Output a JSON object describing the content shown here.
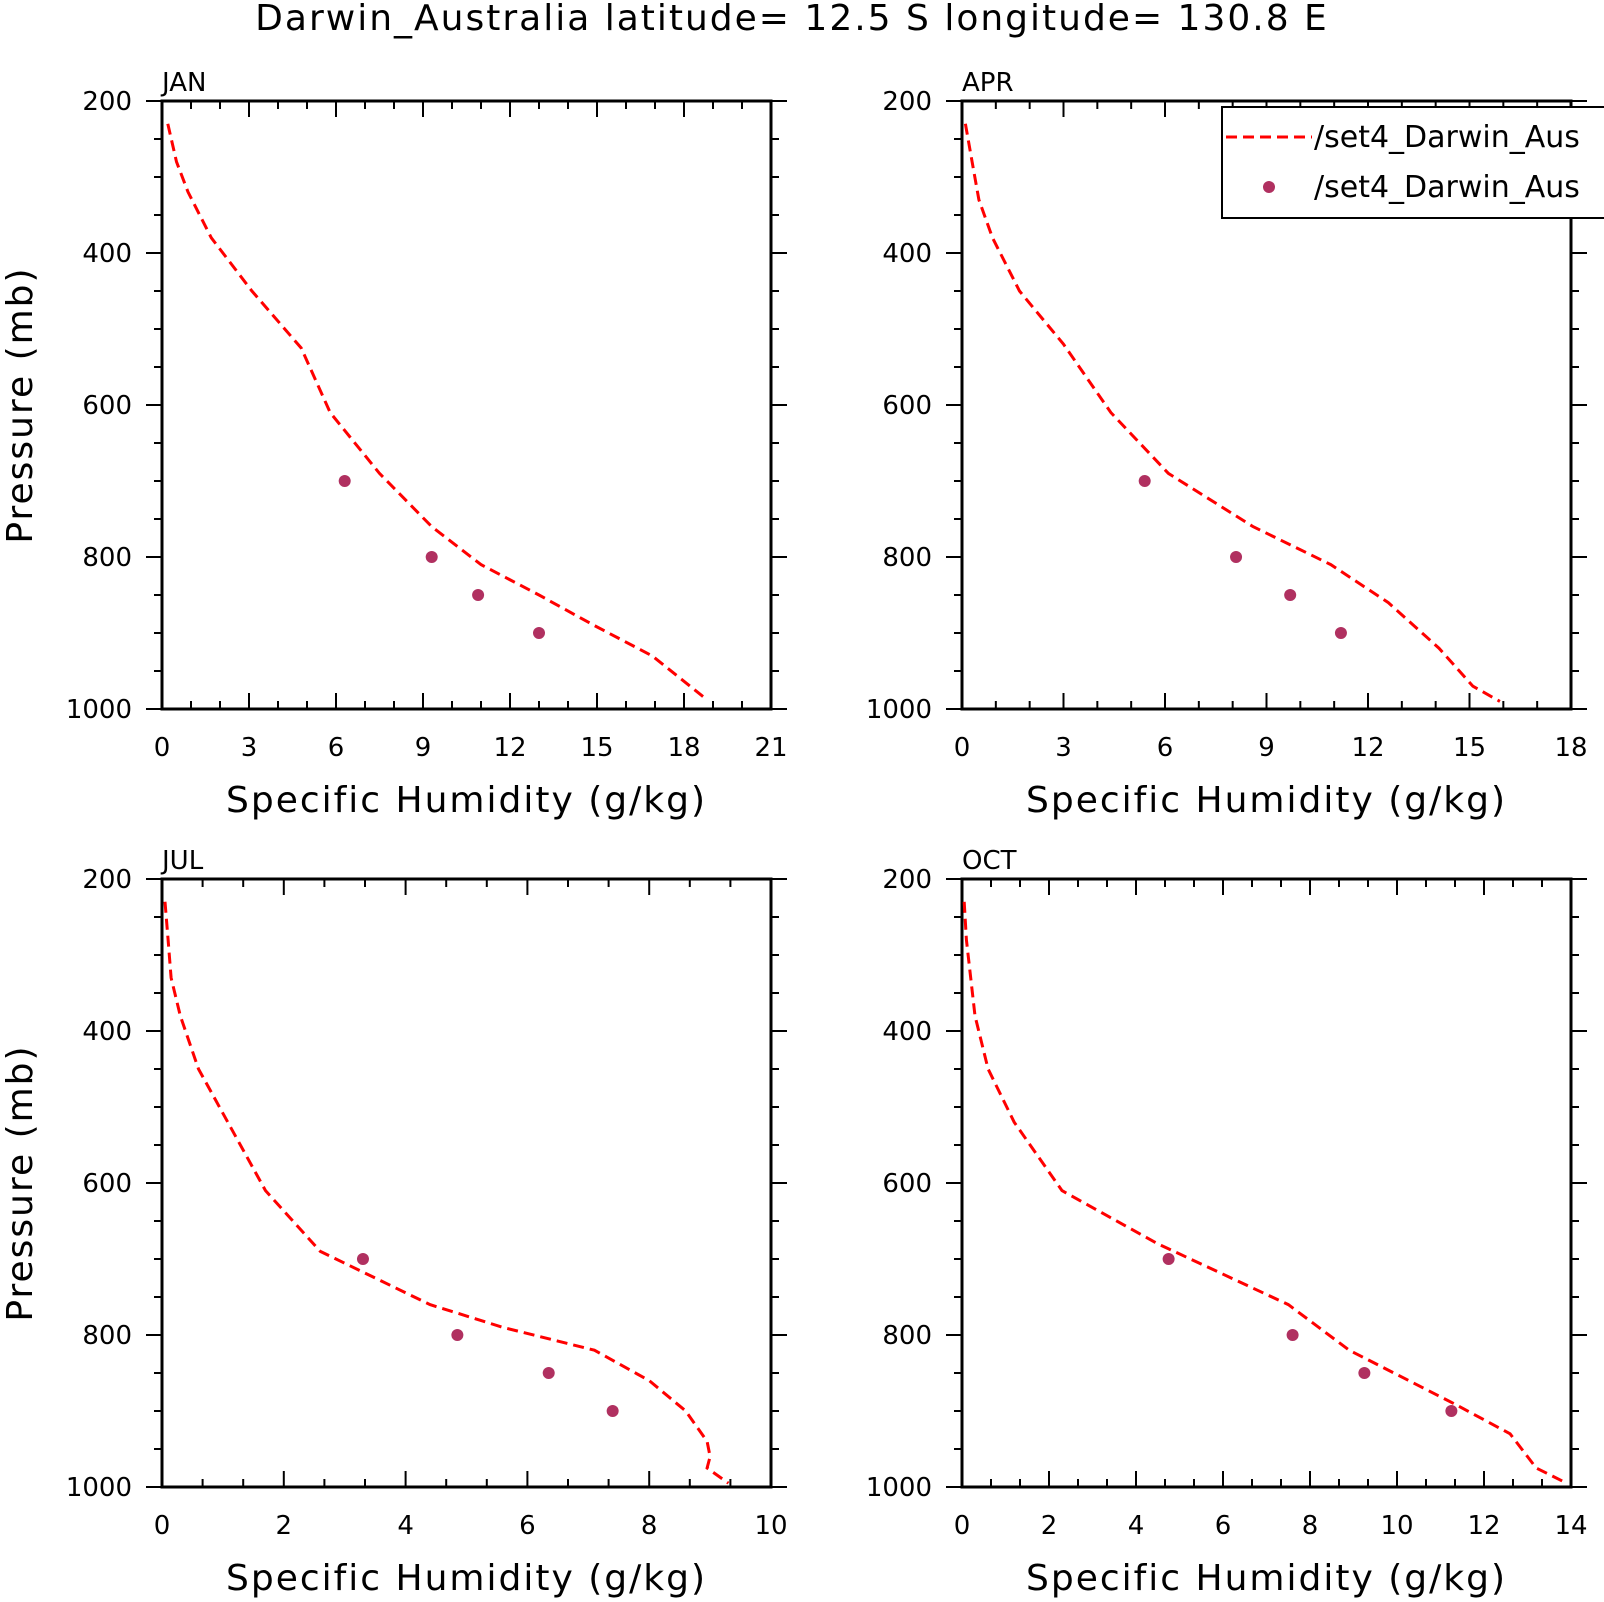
{
  "title": "Darwin_Australia  latitude=  12.5 S longitude=  130.8 E",
  "colors": {
    "model": "#ff0000",
    "obs": "#b03060",
    "axis": "#000000"
  },
  "legend": {
    "entries": [
      {
        "label": "/set4_Darwin_Aus",
        "style": "dashed-line",
        "color": "#ff0000"
      },
      {
        "label": "/set4_Darwin_Aus",
        "style": "marker",
        "color": "#b03060"
      }
    ]
  },
  "chart_data": [
    {
      "type": "line",
      "panel_label": "JAN",
      "xlabel": "Specific Humidity (g/kg)",
      "ylabel": "Pressure (mb)",
      "xlim": [
        0,
        21
      ],
      "ylim": [
        200,
        1000
      ],
      "y_inverted": true,
      "xticks": [
        0,
        3,
        6,
        9,
        12,
        15,
        18,
        21
      ],
      "yticks": [
        200,
        400,
        600,
        800,
        1000
      ],
      "series": [
        {
          "style": "dashed-line",
          "x": [
            0.2,
            0.5,
            0.9,
            1.7,
            3.1,
            4.8,
            5.8,
            7.5,
            9.3,
            11.0,
            13.0,
            14.9,
            16.9,
            18.7
          ],
          "y": [
            230,
            280,
            320,
            380,
            450,
            525,
            610,
            690,
            760,
            810,
            850,
            890,
            930,
            985
          ]
        },
        {
          "style": "marker",
          "x": [
            6.3,
            9.3,
            10.9,
            13.0
          ],
          "y": [
            700,
            800,
            850,
            900
          ]
        }
      ]
    },
    {
      "type": "line",
      "panel_label": "APR",
      "xlabel": "Specific Humidity (g/kg)",
      "ylabel": "",
      "xlim": [
        0,
        18
      ],
      "ylim": [
        200,
        1000
      ],
      "y_inverted": true,
      "xticks": [
        0,
        3,
        6,
        9,
        12,
        15,
        18
      ],
      "yticks": [
        200,
        400,
        600,
        800,
        1000
      ],
      "series": [
        {
          "style": "dashed-line",
          "x": [
            0.1,
            0.3,
            0.5,
            0.9,
            1.7,
            3.0,
            4.4,
            6.1,
            8.6,
            10.9,
            12.6,
            14.1,
            15.1,
            15.9
          ],
          "y": [
            230,
            280,
            330,
            380,
            450,
            520,
            610,
            690,
            760,
            810,
            860,
            920,
            970,
            990
          ]
        },
        {
          "style": "marker",
          "x": [
            5.4,
            8.1,
            9.7,
            11.2
          ],
          "y": [
            700,
            800,
            850,
            900
          ]
        }
      ]
    },
    {
      "type": "line",
      "panel_label": "JUL",
      "xlabel": "Specific Humidity (g/kg)",
      "ylabel": "Pressure (mb)",
      "xlim": [
        0,
        10
      ],
      "ylim": [
        200,
        1000
      ],
      "y_inverted": true,
      "xticks": [
        0,
        2,
        4,
        6,
        8,
        10
      ],
      "yticks": [
        200,
        400,
        600,
        800,
        1000
      ],
      "series": [
        {
          "style": "dashed-line",
          "x": [
            0.05,
            0.1,
            0.15,
            0.3,
            0.6,
            1.7,
            2.6,
            4.4,
            5.6,
            7.1,
            8.0,
            8.6,
            8.95,
            9.0,
            8.95,
            9.3
          ],
          "y": [
            230,
            280,
            330,
            380,
            450,
            610,
            690,
            760,
            790,
            820,
            860,
            900,
            940,
            960,
            975,
            995
          ]
        },
        {
          "style": "marker",
          "x": [
            3.3,
            4.85,
            6.35,
            7.4
          ],
          "y": [
            700,
            800,
            850,
            900
          ]
        }
      ]
    },
    {
      "type": "line",
      "panel_label": "OCT",
      "xlabel": "Specific Humidity (g/kg)",
      "ylabel": "",
      "xlim": [
        0,
        14
      ],
      "ylim": [
        200,
        1000
      ],
      "y_inverted": true,
      "xticks": [
        0,
        2,
        4,
        6,
        8,
        10,
        12,
        14
      ],
      "yticks": [
        200,
        400,
        600,
        800,
        1000
      ],
      "series": [
        {
          "style": "dashed-line",
          "x": [
            0.05,
            0.1,
            0.2,
            0.3,
            0.6,
            1.2,
            2.3,
            4.5,
            7.5,
            8.9,
            11.3,
            12.6,
            13.2,
            13.9
          ],
          "y": [
            230,
            280,
            330,
            380,
            450,
            520,
            610,
            680,
            760,
            820,
            890,
            930,
            975,
            995
          ]
        },
        {
          "style": "marker",
          "x": [
            4.75,
            7.6,
            9.25,
            11.25
          ],
          "y": [
            700,
            800,
            850,
            900
          ]
        }
      ]
    }
  ]
}
